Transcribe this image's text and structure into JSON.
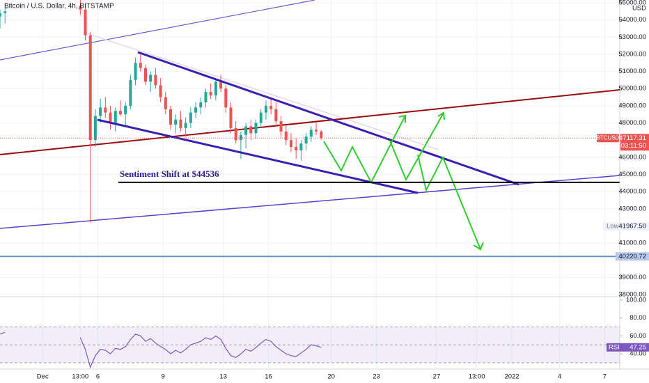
{
  "chart_data": {
    "type": "candlestick",
    "title": "Bitcoin / U.S. Dollar, 4h, BITSTAMP",
    "currency": "USD",
    "symbol": "BTCUSD",
    "up_color": "#26a69a",
    "down_color": "#ef5350",
    "x": [
      0,
      2,
      32,
      34,
      36,
      38,
      40,
      42,
      44,
      46,
      48,
      50,
      52,
      54,
      56,
      58,
      60,
      62,
      64,
      66,
      68,
      70,
      72,
      74,
      76,
      78,
      80,
      82,
      84,
      86,
      88,
      90,
      92,
      94,
      96,
      98,
      100,
      102,
      104,
      106,
      108,
      110,
      112,
      114,
      116,
      118,
      120,
      122,
      124,
      126,
      128
    ],
    "open": [
      54200,
      54400,
      54800,
      54600,
      53100,
      47000,
      48400,
      48900,
      48600,
      48000,
      48700,
      48500,
      49000,
      50500,
      51500,
      51200,
      50400,
      50800,
      50200,
      49500,
      48800,
      47900,
      48200,
      47700,
      48000,
      48600,
      48900,
      49200,
      49800,
      49600,
      50400,
      50000,
      48900,
      47700,
      47000,
      47300,
      47800,
      47400,
      48000,
      48600,
      49000,
      48800,
      48100,
      47500,
      47000,
      46600,
      46400,
      46800,
      47200,
      47600,
      47500
    ],
    "high": [
      54600,
      54700,
      55200,
      54900,
      53300,
      48800,
      49400,
      49500,
      49000,
      48900,
      49300,
      49200,
      50800,
      51800,
      52000,
      51400,
      51000,
      51200,
      50600,
      49800,
      49000,
      48500,
      48700,
      48300,
      48900,
      49200,
      49500,
      50000,
      50300,
      50600,
      50800,
      50200,
      49200,
      48100,
      47500,
      48000,
      48200,
      48200,
      48800,
      49300,
      49500,
      49200,
      48400,
      47900,
      47400,
      47100,
      47000,
      47400,
      47800,
      48000,
      47600
    ],
    "low": [
      53500,
      53800,
      54300,
      52800,
      42200,
      46600,
      48000,
      48300,
      47600,
      47500,
      48400,
      47800,
      48800,
      50200,
      51000,
      50200,
      49800,
      50000,
      49200,
      48500,
      47600,
      47400,
      47500,
      47200,
      47700,
      48300,
      48500,
      48900,
      49400,
      49300,
      49800,
      48600,
      47400,
      46800,
      45900,
      46500,
      47000,
      47100,
      47700,
      48200,
      48500,
      47900,
      47200,
      46700,
      46300,
      45900,
      45800,
      46400,
      46900,
      47300,
      47000
    ],
    "close": [
      54400,
      54500,
      54600,
      53100,
      47000,
      48400,
      48900,
      48600,
      48000,
      48700,
      48500,
      49000,
      50500,
      51500,
      51200,
      50400,
      50800,
      50200,
      49500,
      48800,
      47900,
      48200,
      47700,
      48000,
      48600,
      48900,
      49200,
      49800,
      49600,
      50400,
      50000,
      48900,
      47700,
      47000,
      47300,
      47800,
      47400,
      48000,
      48600,
      49000,
      48800,
      48100,
      47500,
      47000,
      46600,
      46400,
      46800,
      47200,
      47600,
      47500,
      47117.31
    ],
    "xlim": [
      0,
      247
    ],
    "xticks": [
      {
        "value": 17,
        "label": "Dec"
      },
      {
        "value": 32,
        "label": "13:00"
      },
      {
        "value": 39,
        "label": "6"
      },
      {
        "value": 65,
        "label": "9"
      },
      {
        "value": 89,
        "label": "13"
      },
      {
        "value": 107,
        "label": "16"
      },
      {
        "value": 132,
        "label": "20"
      },
      {
        "value": 150,
        "label": "23"
      },
      {
        "value": 174,
        "label": "27"
      },
      {
        "value": 190,
        "label": "13:00"
      },
      {
        "value": 204,
        "label": "2022"
      },
      {
        "value": 223,
        "label": "4"
      },
      {
        "value": 241,
        "label": "7"
      }
    ],
    "ylim": [
      37920,
      55160
    ],
    "yticks": [
      {
        "value": 55000,
        "label": "55000.00"
      },
      {
        "value": 54000,
        "label": "54000.00"
      },
      {
        "value": 53000,
        "label": "53000.00"
      },
      {
        "value": 52000,
        "label": "52000.00"
      },
      {
        "value": 51000,
        "label": "51000.00"
      },
      {
        "value": 50000,
        "label": "50000.00"
      },
      {
        "value": 49000,
        "label": "49000.00"
      },
      {
        "value": 48000,
        "label": "48000.00"
      },
      {
        "value": 46000,
        "label": "46000.00"
      },
      {
        "value": 45000,
        "label": "45000.00"
      },
      {
        "value": 44000,
        "label": "44000.00"
      },
      {
        "value": 43000,
        "label": "43000.00"
      },
      {
        "value": 41000,
        "label": "41000.00"
      },
      {
        "value": 39000,
        "label": "39000.00"
      },
      {
        "value": 38000,
        "label": "38000.00"
      }
    ],
    "last_price_label": "47117.31",
    "countdown": "03:11:50",
    "low_label": "Low",
    "low_value": 41967.5,
    "low_value_label": "41967.50",
    "level": 40220.72,
    "annotation": {
      "text": "Sentiment Shift at $44536",
      "value": 44536
    },
    "rsi": {
      "name": "RSI",
      "color": "#7e57c2",
      "values": [
        62,
        64,
        58,
        45,
        25,
        38,
        45,
        44,
        40,
        46,
        45,
        48,
        56,
        62,
        60,
        54,
        57,
        52,
        48,
        45,
        40,
        44,
        41,
        45,
        50,
        52,
        54,
        58,
        56,
        60,
        56,
        46,
        38,
        36,
        40,
        45,
        43,
        47,
        52,
        56,
        54,
        48,
        44,
        40,
        38,
        37,
        41,
        45,
        50,
        49,
        47.25
      ],
      "ylim": [
        23,
        103
      ],
      "yticks": [
        {
          "value": 100,
          "label": "100.00"
        },
        {
          "value": 80,
          "label": "80.00"
        },
        {
          "value": 60,
          "label": "60.00"
        },
        {
          "value": 40,
          "label": "40.00"
        }
      ],
      "band": [
        30,
        50,
        70
      ]
    }
  }
}
